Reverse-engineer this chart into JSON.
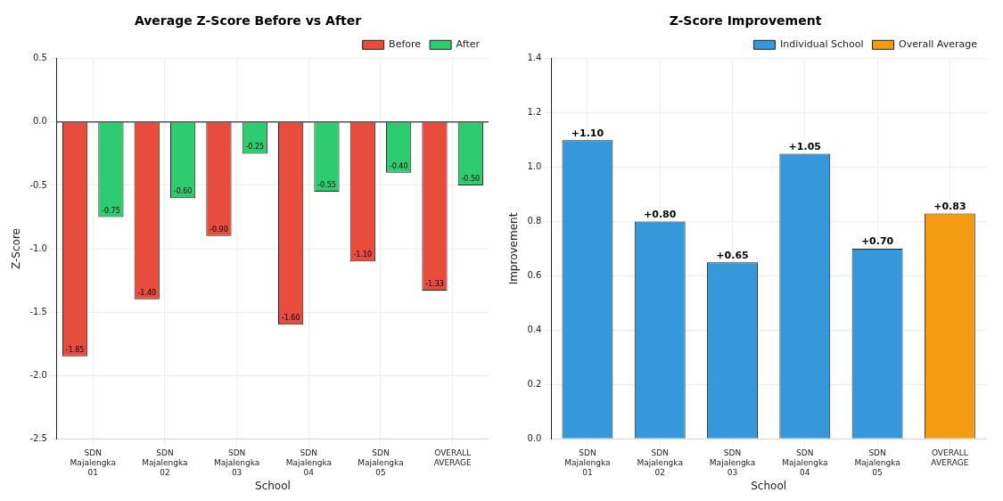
{
  "chart_data": [
    {
      "type": "bar",
      "title": "Average Z-Score Before vs After",
      "xlabel": "School",
      "ylabel": "Z-Score",
      "categories": [
        "SDN Majalengka 01",
        "SDN Majalengka 02",
        "SDN Majalengka 03",
        "SDN Majalengka 04",
        "SDN Majalengka 05",
        "OVERALL AVERAGE"
      ],
      "series": [
        {
          "name": "Before",
          "color": "#e74c3c",
          "values": [
            -1.85,
            -1.4,
            -0.9,
            -1.6,
            -1.1,
            -1.33
          ],
          "value_labels": [
            "-1.85",
            "-1.40",
            "-0.90",
            "-1.60",
            "-1.10",
            "-1.33"
          ]
        },
        {
          "name": "After",
          "color": "#2ecc71",
          "values": [
            -0.75,
            -0.6,
            -0.25,
            -0.55,
            -0.4,
            -0.5
          ],
          "value_labels": [
            "-0.75",
            "-0.60",
            "-0.25",
            "-0.55",
            "-0.40",
            "-0.50"
          ]
        }
      ],
      "ylim": [
        -2.5,
        0.5
      ],
      "yticks": [
        -2.5,
        {
          "value": -2,
          "label": "-2.0"
        },
        -1.5,
        {
          "value": -1,
          "label": "-1.0"
        },
        -0.5,
        {
          "value": 0,
          "label": "0.0"
        },
        0.5
      ],
      "ref_lines": [
        {
          "axis": "y",
          "value": 0,
          "color": "#000000"
        }
      ],
      "grid": true,
      "legend": "top right"
    },
    {
      "type": "bar",
      "title": "Z-Score Improvement",
      "xlabel": "School",
      "ylabel": "Improvement",
      "categories": [
        "SDN Majalengka 01",
        "SDN Majalengka 02",
        "SDN Majalengka 03",
        "SDN Majalengka 04",
        "SDN Majalengka 05",
        "OVERALL AVERAGE"
      ],
      "series": [
        {
          "name": "Individual School",
          "color": "#3498db",
          "values": [
            1.1,
            0.8,
            0.65,
            1.05,
            0.7,
            null
          ],
          "value_labels": [
            "+1.10",
            "+0.80",
            "+0.65",
            "+1.05",
            "+0.70",
            null
          ]
        },
        {
          "name": "Overall Average",
          "color": "#f39c12",
          "values": [
            null,
            null,
            null,
            null,
            null,
            0.83
          ],
          "value_labels": [
            null,
            null,
            null,
            null,
            null,
            "+0.83"
          ]
        }
      ],
      "ylim": [
        0,
        1.4
      ],
      "yticks": [
        {
          "value": 0,
          "label": "0.0"
        },
        0.2,
        0.4,
        0.6,
        0.8,
        {
          "value": 1,
          "label": "1.0"
        },
        1.2,
        1.4
      ],
      "grid": true,
      "legend": "top right"
    }
  ]
}
